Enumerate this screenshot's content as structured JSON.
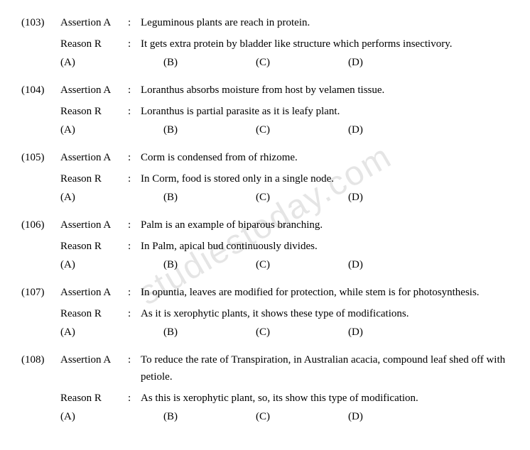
{
  "watermark": "studiestoday.com",
  "labels": {
    "assertion": "Assertion A",
    "reason": "Reason R",
    "colon": ":"
  },
  "options": {
    "a": "(A)",
    "b": "(B)",
    "c": "(C)",
    "d": "(D)"
  },
  "questions": [
    {
      "num": "(103)",
      "assertion": "Leguminous plants are reach in protein.",
      "reason": "It gets extra protein by bladder like structure which performs insectivory."
    },
    {
      "num": "(104)",
      "assertion": "Loranthus absorbs moisture from host by velamen tissue.",
      "reason": "Loranthus is partial parasite as it is leafy plant."
    },
    {
      "num": "(105)",
      "assertion": "Corm is condensed from of rhizome.",
      "reason": "In Corm, food is stored only in a single node."
    },
    {
      "num": "(106)",
      "assertion": "Palm is an example of biparous branching.",
      "reason": "In Palm, apical bud continuously divides."
    },
    {
      "num": "(107)",
      "assertion": "In opuntia, leaves are modified for protection, while stem is for photosynthesis.",
      "reason": "As it is xerophytic plants, it shows these type of modifications."
    },
    {
      "num": "(108)",
      "assertion": "To reduce the rate of Transpiration, in Australian acacia, compound leaf shed off with petiole.",
      "reason": "As this is xerophytic plant, so, its show this type of modification."
    }
  ]
}
